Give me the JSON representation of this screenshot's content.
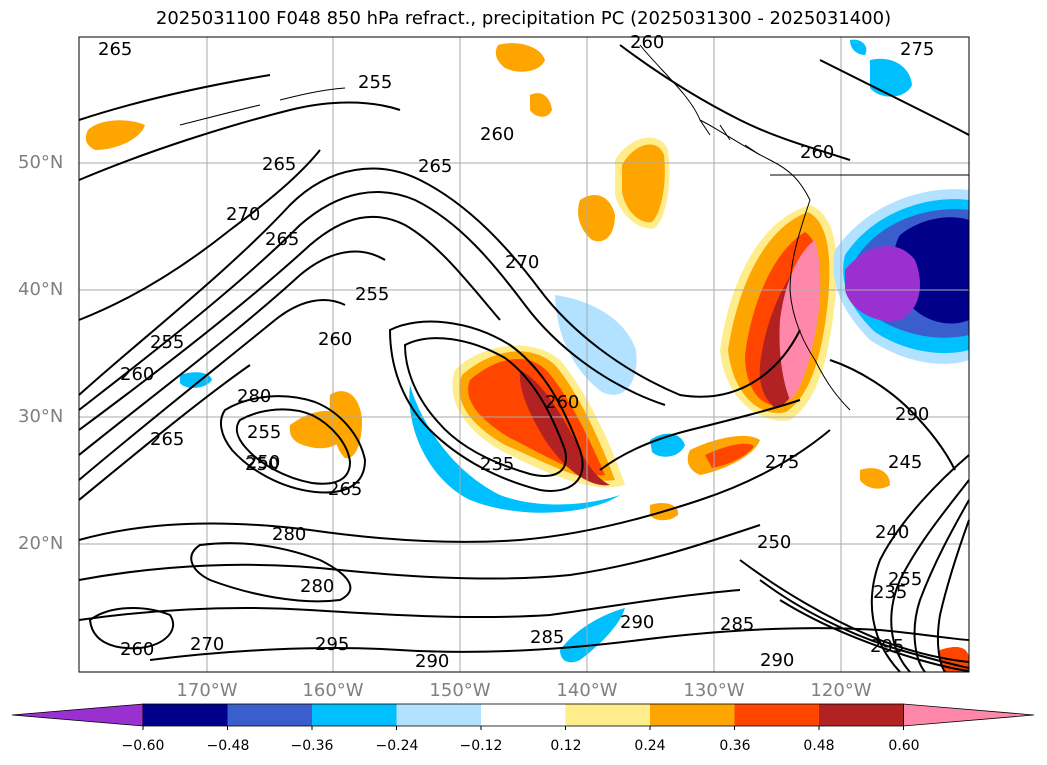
{
  "title": "2025031100 F048 850 hPa refract., precipitation PC (2025031300 - 2025031400)",
  "lat_labels": [
    "50°N",
    "40°N",
    "30°N",
    "20°N"
  ],
  "lon_labels": [
    "170°W",
    "160°W",
    "150°W",
    "140°W",
    "130°W",
    "120°W"
  ],
  "colorbar": {
    "colors": [
      "#9b30d0",
      "#00008b",
      "#3a5fcd",
      "#00bfff",
      "#b2e2ff",
      "#ffffff",
      "#ffec8b",
      "#ffa500",
      "#ff4500",
      "#b22222",
      "#ff88aa"
    ],
    "labels": [
      "−0.60",
      "−0.48",
      "−0.36",
      "−0.24",
      "−0.12",
      "0.12",
      "0.24",
      "0.36",
      "0.48",
      "0.60"
    ]
  },
  "contour_labels": [
    "265",
    "255",
    "260",
    "265",
    "270",
    "265",
    "255",
    "270",
    "260",
    "250",
    "255",
    "280",
    "250",
    "265",
    "260",
    "235",
    "260",
    "280",
    "295",
    "285",
    "290",
    "280",
    "290",
    "265",
    "260",
    "265",
    "260",
    "275",
    "275",
    "250",
    "245",
    "240",
    "235",
    "255",
    "295",
    "290",
    "270",
    "260",
    "290",
    "255",
    "285"
  ]
}
